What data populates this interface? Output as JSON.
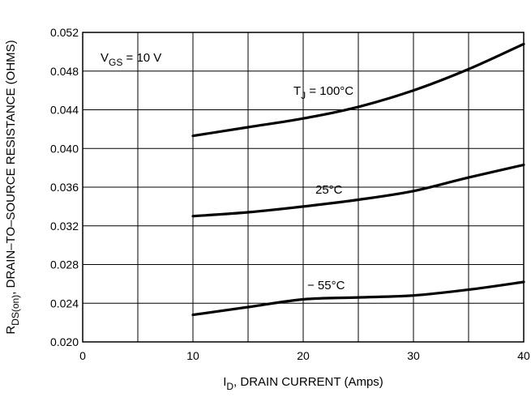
{
  "chart_data": {
    "type": "line",
    "xlabel": {
      "main": "I",
      "sub": "D",
      "rest": ", DRAIN CURRENT (Amps)"
    },
    "ylabel": {
      "main": "R",
      "sub": "DS(on)",
      "rest": ", DRAIN–TO–SOURCE RESISTANCE (OHMS)"
    },
    "xlim": [
      0,
      40
    ],
    "ylim": [
      0.02,
      0.052
    ],
    "x_ticks": [
      "0",
      "10",
      "20",
      "30",
      "40"
    ],
    "y_ticks": [
      "0.020",
      "0.024",
      "0.028",
      "0.032",
      "0.036",
      "0.040",
      "0.044",
      "0.048",
      "0.052"
    ],
    "grid": true,
    "annotation": {
      "main": "V",
      "sub": "GS",
      "rest": " = 10 V"
    },
    "series": [
      {
        "name": "T_J = 100°C",
        "label_main": "T",
        "label_sub": "J",
        "label_rest": " = 100°C",
        "points": [
          [
            10,
            0.0413
          ],
          [
            15,
            0.0422
          ],
          [
            20,
            0.0431
          ],
          [
            25,
            0.0443
          ],
          [
            30,
            0.046
          ],
          [
            35,
            0.0482
          ],
          [
            40,
            0.0508
          ]
        ]
      },
      {
        "name": "25°C",
        "label_main": "25°C",
        "points": [
          [
            10,
            0.033
          ],
          [
            15,
            0.0334
          ],
          [
            20,
            0.034
          ],
          [
            25,
            0.0347
          ],
          [
            30,
            0.0356
          ],
          [
            35,
            0.037
          ],
          [
            40,
            0.0383
          ]
        ]
      },
      {
        "name": "− 55°C",
        "label_main": "− 55°C",
        "points": [
          [
            10,
            0.0228
          ],
          [
            15,
            0.0236
          ],
          [
            20,
            0.0244
          ],
          [
            25,
            0.0246
          ],
          [
            30,
            0.0248
          ],
          [
            35,
            0.0254
          ],
          [
            40,
            0.0262
          ]
        ]
      }
    ]
  }
}
